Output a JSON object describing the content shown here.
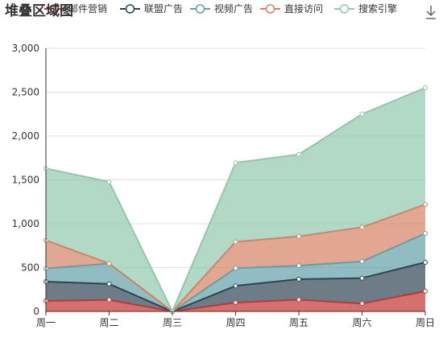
{
  "chart_data": {
    "type": "area",
    "stacked": true,
    "title": "堆叠区域图",
    "categories": [
      "周一",
      "周二",
      "周三",
      "周四",
      "周五",
      "周六",
      "周日"
    ],
    "ylim": [
      0,
      3000
    ],
    "yticks": [
      0,
      500,
      1000,
      1500,
      2000,
      2500,
      3000
    ],
    "ytick_labels": [
      "0",
      "500",
      "1,000",
      "1,500",
      "2,000",
      "2,500",
      "3,000"
    ],
    "grid": "horizontal",
    "legend_position": "top",
    "series": [
      {
        "name": "邮件营销",
        "values": [
          120,
          132,
          0,
          101,
          134,
          90,
          230
        ],
        "color": "#c23531"
      },
      {
        "name": "联盟广告",
        "values": [
          220,
          182,
          0,
          191,
          234,
          290,
          330
        ],
        "color": "#2f4554"
      },
      {
        "name": "视频广告",
        "values": [
          150,
          232,
          0,
          201,
          154,
          190,
          330
        ],
        "color": "#61a0a8"
      },
      {
        "name": "直接访问",
        "values": [
          320,
          0,
          0,
          301,
          334,
          390,
          330
        ],
        "color": "#d48265"
      },
      {
        "name": "搜索引擎",
        "values": [
          820,
          932,
          0,
          901,
          934,
          1290,
          1330
        ],
        "color": "#91c7ae"
      }
    ]
  },
  "toolbar": {
    "save_icon": "download-icon"
  }
}
